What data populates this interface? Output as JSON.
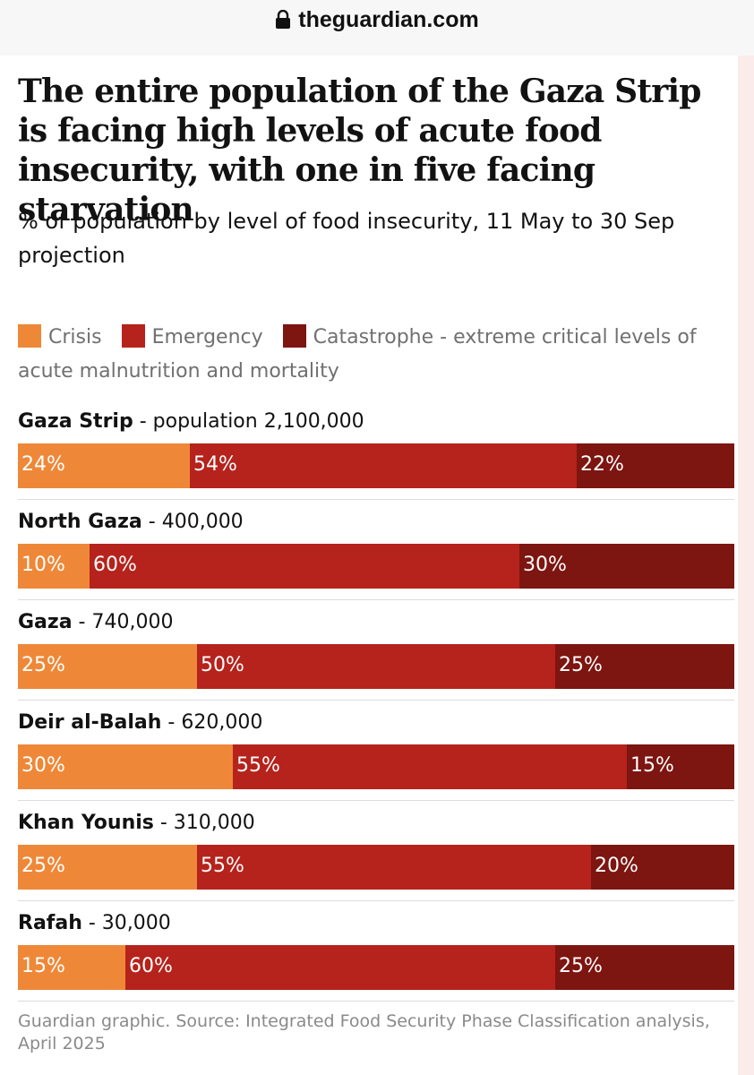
{
  "browser": {
    "url": "theguardian.com",
    "lock_icon": "lock-icon"
  },
  "chart_data": {
    "type": "bar",
    "stacked": true,
    "orientation": "horizontal",
    "title": "The entire population of the Gaza Strip is facing high levels of acute food insecurity, with one in five facing starvation",
    "subtitle": "% of population by level of food insecurity, 11 May to 30 Sep projection",
    "categories": [
      "Gaza Strip",
      "North Gaza",
      "Gaza",
      "Deir al-Balah",
      "Khan Younis",
      "Rafah"
    ],
    "category_details": [
      "- population 2,100,000",
      "- 400,000",
      "- 740,000",
      "- 620,000",
      "- 310,000",
      "- 30,000"
    ],
    "series": [
      {
        "name": "Crisis",
        "color": "#ee8838",
        "values": [
          24,
          10,
          25,
          30,
          25,
          15
        ]
      },
      {
        "name": "Emergency",
        "color": "#b5231c",
        "values": [
          54,
          60,
          50,
          55,
          55,
          60
        ]
      },
      {
        "name": "Catastrophe - extreme critical levels of acute malnutrition and mortality",
        "color": "#7d1510",
        "values": [
          22,
          30,
          25,
          15,
          20,
          25
        ]
      }
    ],
    "value_suffix": "%",
    "xlim": [
      0,
      100
    ],
    "legend_position": "top",
    "source": "Guardian graphic. Source: Integrated Food Security Phase Classification analysis, April 2025"
  }
}
